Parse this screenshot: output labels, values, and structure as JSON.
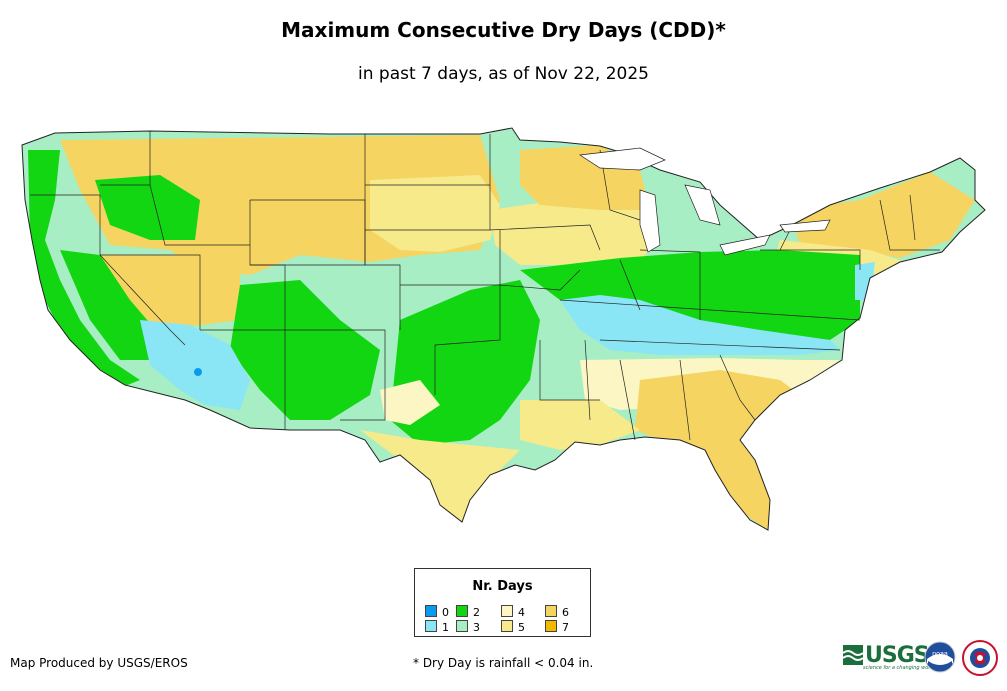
{
  "header": {
    "title": "Maximum Consecutive Dry Days (CDD)*",
    "subtitle": "in past 7 days, as of Nov 22, 2025"
  },
  "map": {
    "region": "Contiguous United States",
    "colors": {
      "0": "#0a9bef",
      "1": "#8ae6f5",
      "2": "#11d611",
      "3": "#a8eec4",
      "4": "#fbf6c4",
      "5": "#f6ea8b",
      "6": "#f5d461",
      "7": "#f5b800"
    }
  },
  "legend": {
    "title": "Nr. Days",
    "items": [
      {
        "label": "0",
        "color": "#0a9bef"
      },
      {
        "label": "1",
        "color": "#8ae6f5"
      },
      {
        "label": "2",
        "color": "#11d611"
      },
      {
        "label": "3",
        "color": "#a8eec4"
      },
      {
        "label": "4",
        "color": "#fbf6c4"
      },
      {
        "label": "5",
        "color": "#f6ea8b"
      },
      {
        "label": "6",
        "color": "#f5d461"
      },
      {
        "label": "7",
        "color": "#f5b800"
      }
    ]
  },
  "footer": {
    "credit": "Map Produced by USGS/EROS",
    "note": "* Dry Day is rainfall < 0.04 in."
  },
  "logos": {
    "usgs_text": "USGS",
    "usgs_tagline": "science for a changing world",
    "noaa_text": "noaa"
  }
}
